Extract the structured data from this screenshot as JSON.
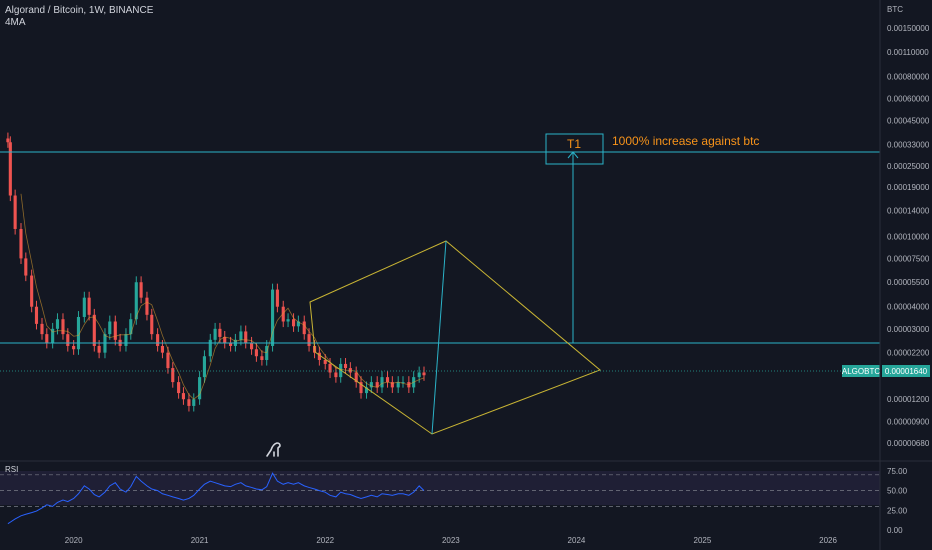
{
  "header": {
    "title": "Algorand / Bitcoin, 1W, BINANCE",
    "indicator": "4MA"
  },
  "axis": {
    "currency": "BTC",
    "price_ticks": [
      "0.00150000",
      "0.00110000",
      "0.00080000",
      "0.00060000",
      "0.00045000",
      "0.00033000",
      "0.00025000",
      "0.00019000",
      "0.00014000",
      "0.00010000",
      "0.00007500",
      "0.00005500",
      "0.00004000",
      "0.00003000",
      "0.00002200",
      "0.00001640",
      "0.00001200",
      "0.00000900",
      "0.00000680"
    ],
    "time_ticks": [
      "2020",
      "2021",
      "2022",
      "2023",
      "2024",
      "2025",
      "2026"
    ]
  },
  "last_price": {
    "symbol": "ALGOBTC",
    "value": "0.00001640"
  },
  "annotations": {
    "target_label": "T1",
    "target_text": "1000% increase against btc",
    "resistance_level": 0.00027,
    "support_level": 2.15e-05
  },
  "rsi": {
    "label": "RSI",
    "ticks": [
      "75.00",
      "50.00",
      "25.00",
      "0.00"
    ]
  },
  "colors": {
    "background": "#131722",
    "up_candle": "#26a69a",
    "down_candle": "#ef5350",
    "horizontal_lines": "#2bb3c8",
    "triangle": "#c8b434",
    "annotation_text": "#f7931a",
    "rsi_line": "#2962ff",
    "price_badge": "#26a69a"
  },
  "chart_data": {
    "type": "candlestick",
    "title": "Algorand / Bitcoin, 1W, BINANCE",
    "y_scale": "log",
    "ylim": [
      6.2e-06,
      0.0019
    ],
    "xlim": [
      "2019-06-01",
      "2026-06-01"
    ],
    "series": [
      {
        "name": "ALGOBTC",
        "x": [
          "2019-06-24",
          "2019-07-01",
          "2019-07-15",
          "2019-08-01",
          "2019-08-15",
          "2019-09-01",
          "2019-09-15",
          "2019-10-01",
          "2019-10-15",
          "2019-11-01",
          "2019-11-15",
          "2019-12-01",
          "2019-12-15",
          "2020-01-01",
          "2020-01-15",
          "2020-02-01",
          "2020-02-15",
          "2020-03-01",
          "2020-03-15",
          "2020-04-01",
          "2020-04-15",
          "2020-05-01",
          "2020-05-15",
          "2020-06-01",
          "2020-06-15",
          "2020-07-01",
          "2020-07-15",
          "2020-08-01",
          "2020-08-15",
          "2020-09-01",
          "2020-09-15",
          "2020-10-01",
          "2020-10-15",
          "2020-11-01",
          "2020-11-15",
          "2020-12-01",
          "2020-12-15",
          "2021-01-01",
          "2021-01-15",
          "2021-02-01",
          "2021-02-15",
          "2021-03-01",
          "2021-03-15",
          "2021-04-01",
          "2021-04-15",
          "2021-05-01",
          "2021-05-15",
          "2021-06-01",
          "2021-06-15",
          "2021-07-01",
          "2021-07-15",
          "2021-08-01",
          "2021-08-15",
          "2021-09-01",
          "2021-09-15",
          "2021-10-01",
          "2021-10-15",
          "2021-11-01",
          "2021-11-15",
          "2021-12-01",
          "2021-12-15",
          "2022-01-01",
          "2022-01-15",
          "2022-02-01",
          "2022-02-15",
          "2022-03-01",
          "2022-03-15",
          "2022-04-01",
          "2022-04-15",
          "2022-05-01",
          "2022-05-15",
          "2022-06-01",
          "2022-06-15",
          "2022-07-01",
          "2022-07-15",
          "2022-08-01",
          "2022-08-15",
          "2022-09-01",
          "2022-09-15",
          "2022-10-01",
          "2022-10-15"
        ],
        "values": [
          0.00034,
          0.00017,
          0.00011,
          7.5e-05,
          6e-05,
          4e-05,
          3.2e-05,
          2.8e-05,
          2.5e-05,
          3e-05,
          3.4e-05,
          2.8e-05,
          2.4e-05,
          2.3e-05,
          3.5e-05,
          4.5e-05,
          3.6e-05,
          2.4e-05,
          2.2e-05,
          2.8e-05,
          3.3e-05,
          2.6e-05,
          2.4e-05,
          2.8e-05,
          3.4e-05,
          5.5e-05,
          4.5e-05,
          3.6e-05,
          2.8e-05,
          2.4e-05,
          2.2e-05,
          1.8e-05,
          1.5e-05,
          1.3e-05,
          1.2e-05,
          1.1e-05,
          1.2e-05,
          1.6e-05,
          2.1e-05,
          2.6e-05,
          3e-05,
          2.7e-05,
          2.5e-05,
          2.4e-05,
          2.6e-05,
          2.9e-05,
          2.5e-05,
          2.3e-05,
          2.1e-05,
          2e-05,
          2.4e-05,
          5e-05,
          4e-05,
          3.3e-05,
          3.4e-05,
          3.1e-05,
          3.3e-05,
          2.8e-05,
          2.4e-05,
          2.2e-05,
          2e-05,
          1.9e-05,
          1.7e-05,
          1.6e-05,
          1.9e-05,
          1.8e-05,
          1.7e-05,
          1.5e-05,
          1.3e-05,
          1.4e-05,
          1.5e-05,
          1.4e-05,
          1.6e-05,
          1.5e-05,
          1.4e-05,
          1.5e-05,
          1.5e-05,
          1.4e-05,
          1.6e-05,
          1.7e-05,
          1.64e-05
        ]
      }
    ],
    "rsi_series": {
      "name": "RSI",
      "values": [
        8,
        10,
        14,
        18,
        20,
        22,
        24,
        28,
        32,
        30,
        35,
        38,
        36,
        40,
        46,
        56,
        52,
        45,
        42,
        48,
        56,
        60,
        52,
        48,
        55,
        68,
        62,
        56,
        52,
        50,
        46,
        44,
        42,
        40,
        38,
        40,
        44,
        52,
        58,
        62,
        60,
        58,
        56,
        55,
        58,
        60,
        56,
        54,
        52,
        51,
        55,
        72,
        62,
        58,
        60,
        58,
        60,
        56,
        54,
        52,
        50,
        48,
        44,
        42,
        48,
        46,
        45,
        42,
        40,
        42,
        44,
        42,
        46,
        45,
        44,
        46,
        46,
        44,
        48,
        56,
        50
      ]
    },
    "rsi_ylim": [
      0,
      85
    ],
    "grid": false
  }
}
